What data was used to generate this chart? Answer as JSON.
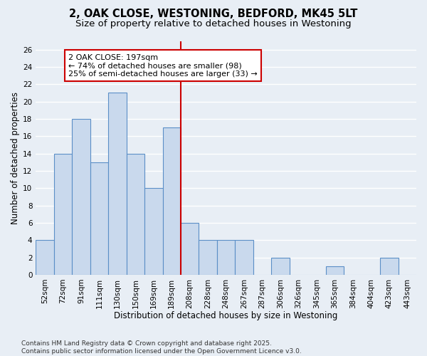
{
  "title": "2, OAK CLOSE, WESTONING, BEDFORD, MK45 5LT",
  "subtitle": "Size of property relative to detached houses in Westoning",
  "xlabel": "Distribution of detached houses by size in Westoning",
  "ylabel": "Number of detached properties",
  "categories": [
    "52sqm",
    "72sqm",
    "91sqm",
    "111sqm",
    "130sqm",
    "150sqm",
    "169sqm",
    "189sqm",
    "208sqm",
    "228sqm",
    "248sqm",
    "267sqm",
    "287sqm",
    "306sqm",
    "326sqm",
    "345sqm",
    "365sqm",
    "384sqm",
    "404sqm",
    "423sqm",
    "443sqm"
  ],
  "values": [
    4,
    14,
    18,
    13,
    21,
    14,
    10,
    17,
    6,
    4,
    4,
    4,
    0,
    2,
    0,
    0,
    1,
    0,
    0,
    2,
    0
  ],
  "bar_color": "#c9d9ed",
  "bar_edge_color": "#5b8fc7",
  "background_color": "#e8eef5",
  "grid_color": "#ffffff",
  "annotation_line1": "2 OAK CLOSE: 197sqm",
  "annotation_line2": "← 74% of detached houses are smaller (98)",
  "annotation_line3": "25% of semi-detached houses are larger (33) →",
  "annotation_box_color": "#ffffff",
  "annotation_box_edge_color": "#cc0000",
  "vline_x": 7.5,
  "vline_color": "#cc0000",
  "ylim": [
    0,
    27
  ],
  "yticks": [
    0,
    2,
    4,
    6,
    8,
    10,
    12,
    14,
    16,
    18,
    20,
    22,
    24,
    26
  ],
  "footer": "Contains HM Land Registry data © Crown copyright and database right 2025.\nContains public sector information licensed under the Open Government Licence v3.0.",
  "title_fontsize": 10.5,
  "subtitle_fontsize": 9.5,
  "xlabel_fontsize": 8.5,
  "ylabel_fontsize": 8.5,
  "tick_fontsize": 7.5,
  "annotation_fontsize": 8,
  "footer_fontsize": 6.5
}
